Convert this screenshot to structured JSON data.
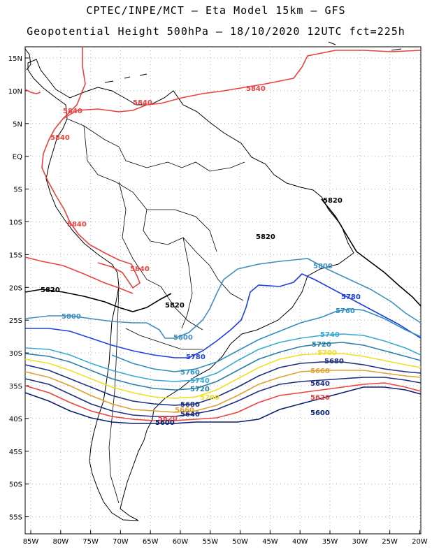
{
  "title_line1": "CPTEC/INPE/MCT –  Eta Model 15km – GFS",
  "title_line2": "Geopotential Height 500hPa – 18/10/2020 12UTC fct=225h",
  "colors": {
    "c5840": "#e8433f",
    "c5820": "#000000",
    "c5800": "#3f8fbf",
    "c5780": "#1f3fdf",
    "c5760": "#2f8fbf",
    "c5740": "#3aa9d0",
    "c5720": "#2a7fa8",
    "c5700": "#f0e020",
    "c5680": "#1f2f7f",
    "c5660": "#e0a030",
    "c5620": "#e8433f",
    "c5600": "#0a1f6f",
    "border": "#000000",
    "grid": "#b0b0b0"
  },
  "lat_labels": [
    "15N",
    "10N",
    "5N",
    "EQ",
    "5S",
    "10S",
    "15S",
    "20S",
    "25S",
    "30S",
    "35S",
    "40S",
    "45S",
    "50S",
    "55S"
  ],
  "lon_labels": [
    "85W",
    "80W",
    "75W",
    "70W",
    "65W",
    "60W",
    "55W",
    "50W",
    "45W",
    "40W",
    "35W",
    "30W",
    "25W",
    "20W"
  ],
  "contour_labels": [
    {
      "id": "l5840a",
      "text": "5840"
    },
    {
      "id": "l5840b",
      "text": "5840"
    },
    {
      "id": "l5840c",
      "text": "5840"
    },
    {
      "id": "l5840d",
      "text": "5840"
    },
    {
      "id": "l5840e",
      "text": "5840"
    },
    {
      "id": "l5840f",
      "text": "5840"
    },
    {
      "id": "l5820a",
      "text": "5820"
    },
    {
      "id": "l5820b",
      "text": "5820"
    },
    {
      "id": "l5820c",
      "text": "5820"
    },
    {
      "id": "l5820d",
      "text": "5820"
    },
    {
      "id": "l5800a",
      "text": "5800"
    },
    {
      "id": "l5800b",
      "text": "5800"
    },
    {
      "id": "l5800c",
      "text": "5800"
    },
    {
      "id": "l5780a",
      "text": "5780"
    },
    {
      "id": "l5780b",
      "text": "5780"
    },
    {
      "id": "l5760a",
      "text": "5760"
    },
    {
      "id": "l5760b",
      "text": "5760"
    },
    {
      "id": "l5740a",
      "text": "5740"
    },
    {
      "id": "l5740b",
      "text": "5740"
    },
    {
      "id": "l5720a",
      "text": "5720"
    },
    {
      "id": "l5720b",
      "text": "5720"
    },
    {
      "id": "l5700a",
      "text": "5700"
    },
    {
      "id": "l5700b",
      "text": "5700"
    },
    {
      "id": "l5680a",
      "text": "5680"
    },
    {
      "id": "l5680b",
      "text": "5680"
    },
    {
      "id": "l5660a",
      "text": "5660"
    },
    {
      "id": "l5660b",
      "text": "5660"
    },
    {
      "id": "l5640a",
      "text": "5640"
    },
    {
      "id": "l5640b",
      "text": "5640"
    },
    {
      "id": "l5620a",
      "text": "5620"
    },
    {
      "id": "l5620b",
      "text": "5620"
    },
    {
      "id": "l5600a",
      "text": "5600"
    },
    {
      "id": "l5600b",
      "text": "5600"
    }
  ]
}
